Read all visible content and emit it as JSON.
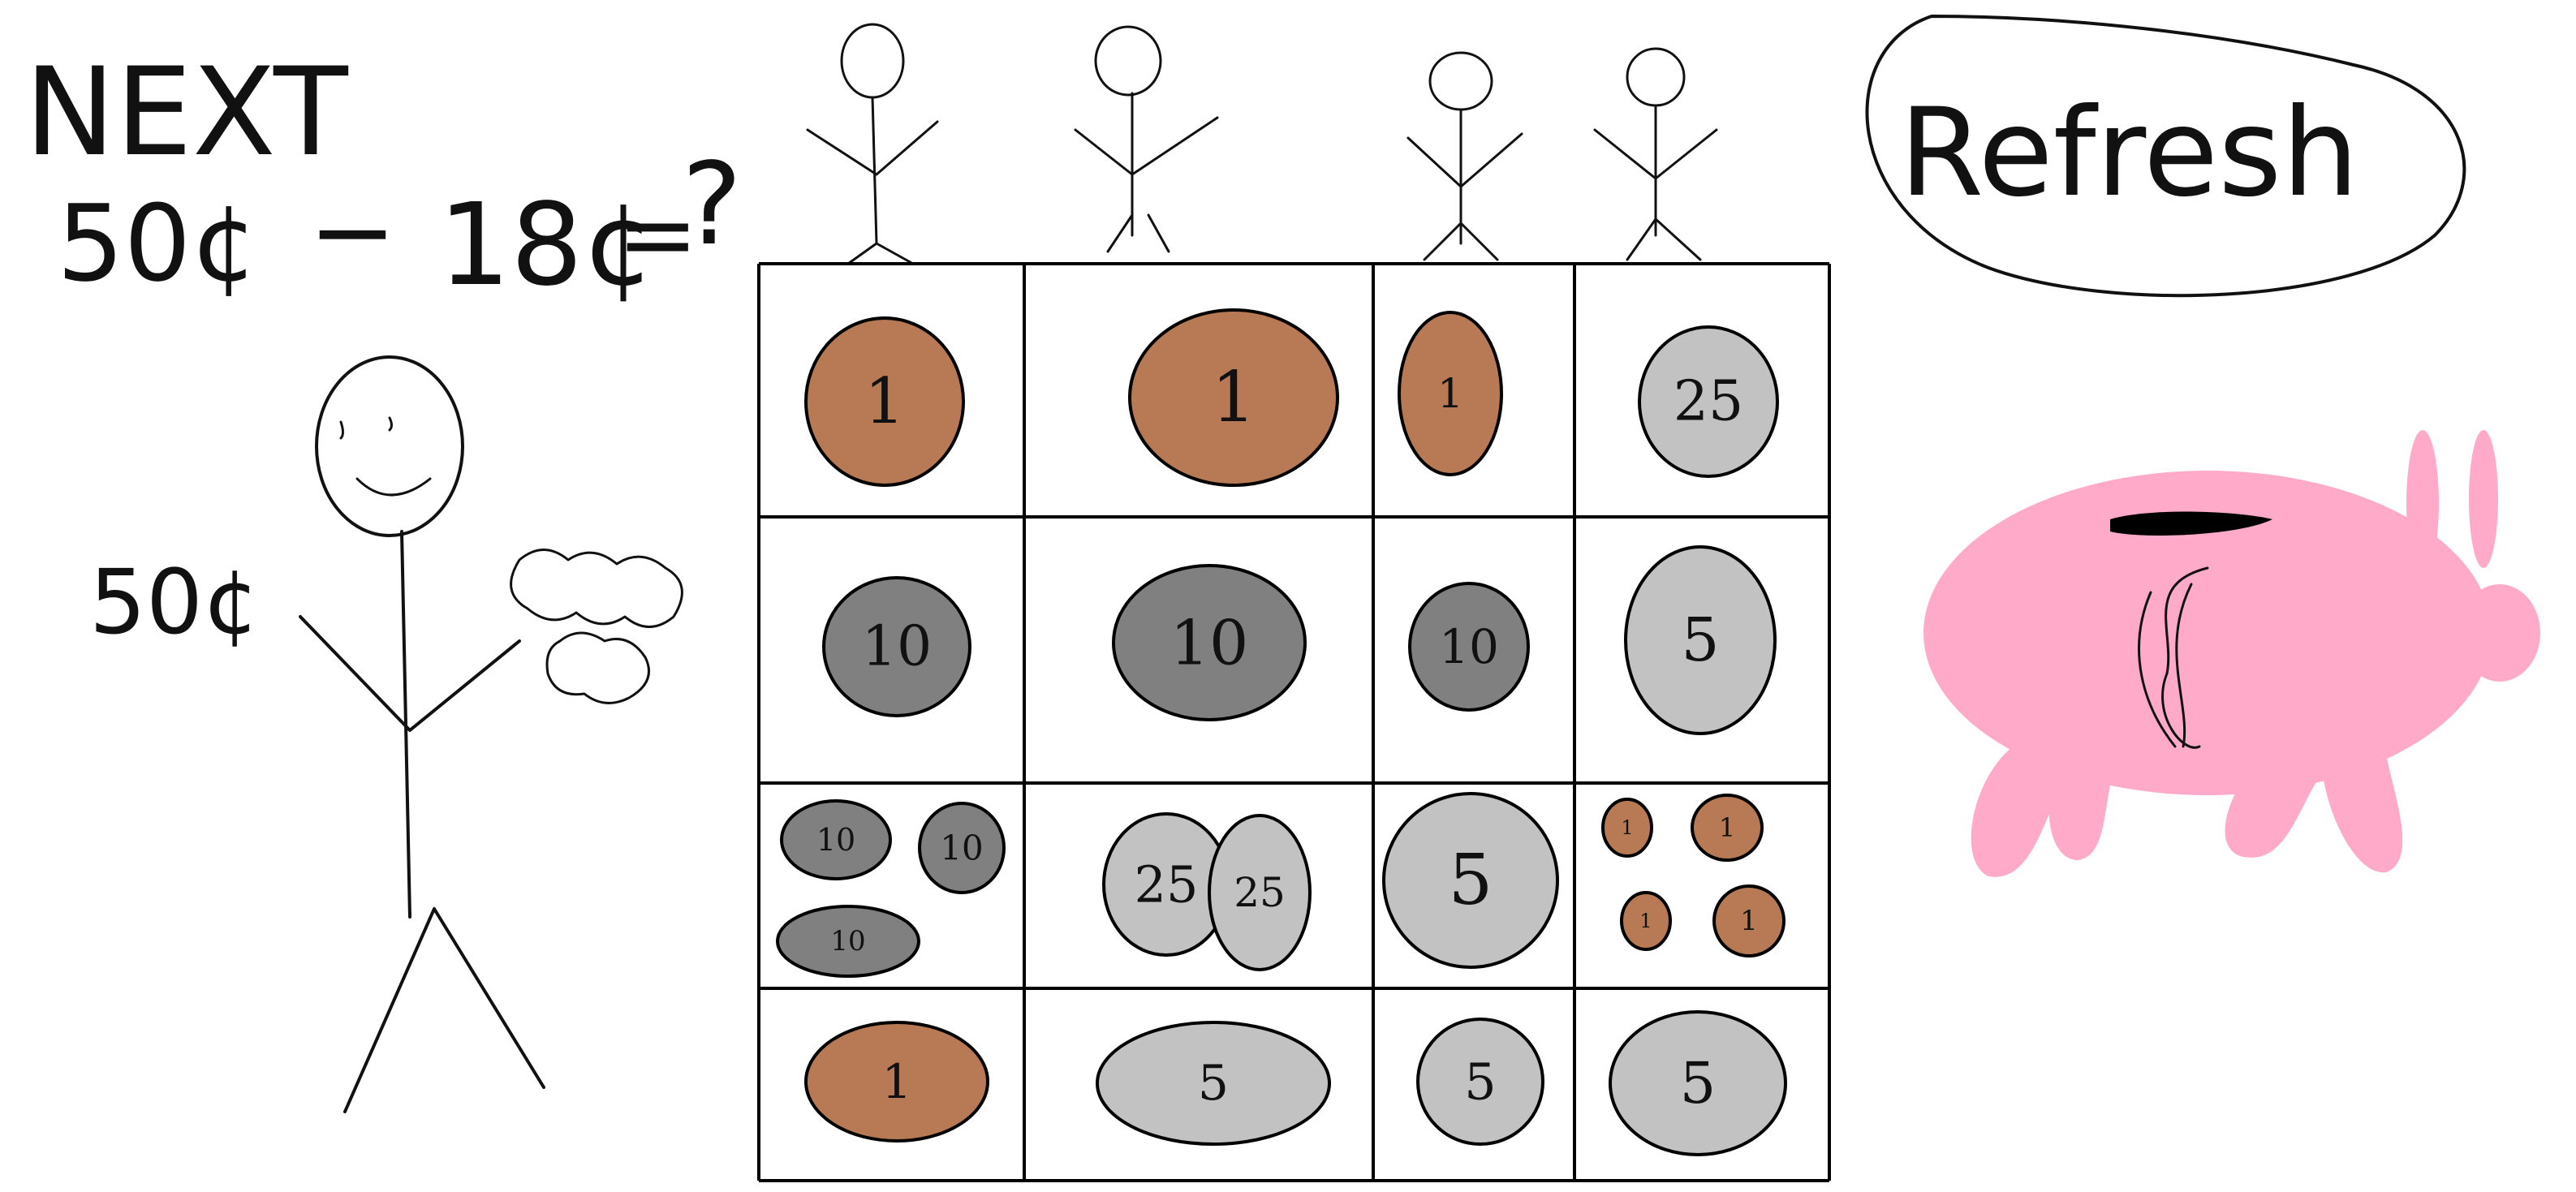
{
  "header": {
    "title": "NEXT",
    "amount": "50¢",
    "operator": "−",
    "subtract": "18¢",
    "equals": "=",
    "question": "?"
  },
  "player": {
    "money_label": "50¢"
  },
  "refresh_button": {
    "label": "Refresh"
  },
  "colors": {
    "penny": "#b87a55",
    "dime": "#808080",
    "nickel_quarter": "#c2c2c2",
    "piggy": "#ffaac8",
    "slot": "#000000"
  },
  "grid": {
    "rows": [
      [
        {
          "coins": [
            {
              "value": "1",
              "type": "penny"
            }
          ]
        },
        {
          "coins": [
            {
              "value": "1",
              "type": "penny"
            }
          ]
        },
        {
          "coins": [
            {
              "value": "1",
              "type": "penny"
            }
          ]
        },
        {
          "coins": [
            {
              "value": "25",
              "type": "quarter"
            }
          ]
        }
      ],
      [
        {
          "coins": [
            {
              "value": "10",
              "type": "dime"
            }
          ]
        },
        {
          "coins": [
            {
              "value": "10",
              "type": "dime"
            }
          ]
        },
        {
          "coins": [
            {
              "value": "10",
              "type": "dime"
            }
          ]
        },
        {
          "coins": [
            {
              "value": "5",
              "type": "nickel"
            }
          ]
        }
      ],
      [
        {
          "coins": [
            {
              "value": "10",
              "type": "dime"
            },
            {
              "value": "10",
              "type": "dime"
            },
            {
              "value": "10",
              "type": "dime"
            }
          ]
        },
        {
          "coins": [
            {
              "value": "25",
              "type": "quarter"
            },
            {
              "value": "25",
              "type": "quarter"
            }
          ]
        },
        {
          "coins": [
            {
              "value": "5",
              "type": "nickel"
            }
          ]
        },
        {
          "coins": [
            {
              "value": "1",
              "type": "penny"
            },
            {
              "value": "1",
              "type": "penny"
            },
            {
              "value": "1",
              "type": "penny"
            },
            {
              "value": "1",
              "type": "penny"
            }
          ]
        }
      ],
      [
        {
          "coins": [
            {
              "value": "1",
              "type": "penny"
            }
          ]
        },
        {
          "coins": [
            {
              "value": "5",
              "type": "nickel"
            }
          ]
        },
        {
          "coins": [
            {
              "value": "5",
              "type": "nickel"
            }
          ]
        },
        {
          "coins": [
            {
              "value": "5",
              "type": "nickel"
            }
          ]
        }
      ]
    ]
  }
}
